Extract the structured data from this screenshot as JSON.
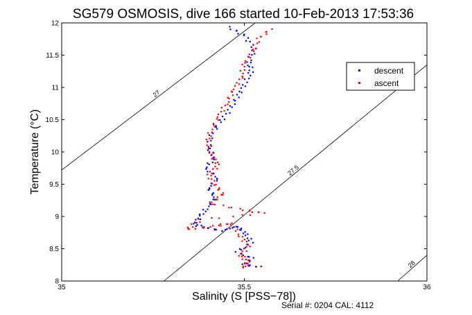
{
  "chart_data": {
    "type": "scatter",
    "title": "SG579 OSMOSIS, dive 166 started 10-Feb-2013 17:53:36",
    "xlabel": "Salinity (S [PSS−78])",
    "ylabel": "Temperature (°C)",
    "xlim": [
      35,
      36
    ],
    "ylim": [
      8,
      12
    ],
    "xticks": [
      "35",
      "35.5",
      "36"
    ],
    "yticks": [
      "8",
      "8.5",
      "9",
      "9.5",
      "10",
      "10.5",
      "11",
      "11.5",
      "12"
    ],
    "grid": false,
    "legend_position": "top-right",
    "footer": "Serial #: 0204  CAL: 4112",
    "density_contours": [
      {
        "label": "27",
        "points": [
          [
            35.0,
            9.72
          ],
          [
            35.53,
            12.0
          ]
        ]
      },
      {
        "label": "27.5",
        "points": [
          [
            35.28,
            8.0
          ],
          [
            36.0,
            11.35
          ]
        ]
      },
      {
        "label": "28",
        "points": [
          [
            35.92,
            8.0
          ],
          [
            36.0,
            8.4
          ]
        ]
      }
    ],
    "series": [
      {
        "name": "descent",
        "color": "#0000ff",
        "values": [
          [
            35.46,
            11.93
          ],
          [
            35.5,
            11.8
          ],
          [
            35.53,
            11.6
          ],
          [
            35.51,
            11.4
          ],
          [
            35.52,
            11.25
          ],
          [
            35.5,
            11.05
          ],
          [
            35.48,
            10.85
          ],
          [
            35.46,
            10.65
          ],
          [
            35.43,
            10.45
          ],
          [
            35.41,
            10.25
          ],
          [
            35.4,
            10.05
          ],
          [
            35.42,
            9.9
          ],
          [
            35.39,
            9.75
          ],
          [
            35.43,
            9.6
          ],
          [
            35.4,
            9.45
          ],
          [
            35.42,
            9.3
          ],
          [
            35.4,
            9.15
          ],
          [
            35.38,
            9.0
          ],
          [
            35.36,
            8.88
          ],
          [
            35.4,
            8.82
          ],
          [
            35.44,
            8.78
          ],
          [
            35.48,
            8.85
          ],
          [
            35.5,
            8.75
          ],
          [
            35.52,
            8.6
          ],
          [
            35.48,
            8.45
          ],
          [
            35.52,
            8.35
          ],
          [
            35.5,
            8.25
          ],
          [
            35.54,
            8.22
          ]
        ]
      },
      {
        "name": "ascent",
        "color": "#ff0000",
        "values": [
          [
            35.57,
            11.9
          ],
          [
            35.54,
            11.75
          ],
          [
            35.52,
            11.55
          ],
          [
            35.5,
            11.35
          ],
          [
            35.49,
            11.15
          ],
          [
            35.47,
            10.95
          ],
          [
            35.45,
            10.75
          ],
          [
            35.43,
            10.55
          ],
          [
            35.41,
            10.35
          ],
          [
            35.4,
            10.15
          ],
          [
            35.41,
            9.95
          ],
          [
            35.43,
            9.8
          ],
          [
            35.4,
            9.65
          ],
          [
            35.42,
            9.5
          ],
          [
            35.44,
            9.35
          ],
          [
            35.41,
            9.2
          ],
          [
            35.5,
            9.1
          ],
          [
            35.55,
            9.05
          ],
          [
            35.38,
            8.95
          ],
          [
            35.34,
            8.8
          ],
          [
            35.42,
            8.85
          ],
          [
            35.46,
            8.9
          ],
          [
            35.49,
            8.7
          ],
          [
            35.51,
            8.55
          ],
          [
            35.49,
            8.4
          ],
          [
            35.51,
            8.3
          ],
          [
            35.5,
            8.2
          ]
        ]
      }
    ]
  }
}
